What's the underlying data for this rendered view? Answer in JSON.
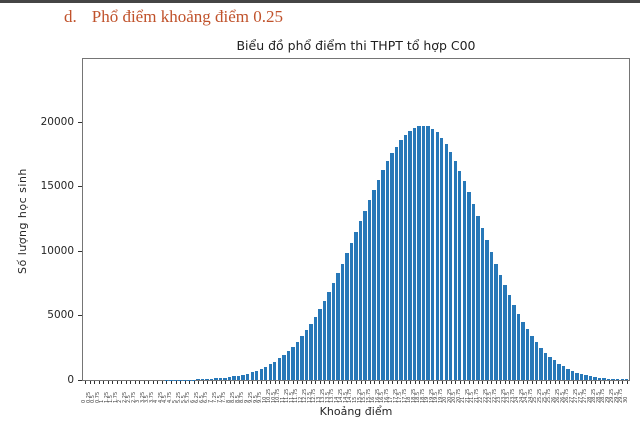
{
  "page": {
    "heading_marker": "d.",
    "heading_text": "Phổ điểm khoảng điểm 0.25",
    "heading_color": "#c0522b"
  },
  "chart_data": {
    "type": "bar",
    "title": "Biểu đồ phổ điểm thi THPT tổ hợp C00",
    "xlabel": "Khoảng điểm",
    "ylabel": "Số lượng học sinh",
    "bar_color": "#2878b8",
    "axis_color": "#757575",
    "grid": false,
    "legend": "none",
    "ylim": [
      0,
      24850
    ],
    "yticks": [
      0,
      5000,
      10000,
      15000,
      20000
    ],
    "x": [
      0,
      0.25,
      0.5,
      0.75,
      1,
      1.25,
      1.5,
      1.75,
      2,
      2.25,
      2.5,
      2.75,
      3,
      3.25,
      3.5,
      3.75,
      4,
      4.25,
      4.5,
      4.75,
      5,
      5.25,
      5.5,
      5.75,
      6,
      6.25,
      6.5,
      6.75,
      7,
      7.25,
      7.5,
      7.75,
      8,
      8.25,
      8.5,
      8.75,
      9,
      9.25,
      9.5,
      9.75,
      10,
      10.25,
      10.5,
      10.75,
      11,
      11.25,
      11.5,
      11.75,
      12,
      12.25,
      12.5,
      12.75,
      13,
      13.25,
      13.5,
      13.75,
      14,
      14.25,
      14.5,
      14.75,
      15,
      15.25,
      15.5,
      15.75,
      16,
      16.25,
      16.5,
      16.75,
      17,
      17.25,
      17.5,
      17.75,
      18,
      18.25,
      18.5,
      18.75,
      19,
      19.25,
      19.5,
      19.75,
      20,
      20.25,
      20.5,
      20.75,
      21,
      21.25,
      21.5,
      21.75,
      22,
      22.25,
      22.5,
      22.75,
      23,
      23.25,
      23.5,
      23.75,
      24,
      24.25,
      24.5,
      24.75,
      25,
      25.25,
      25.5,
      25.75,
      26,
      26.25,
      26.5,
      26.75,
      27,
      27.25,
      27.5,
      27.75,
      28,
      28.25,
      28.5,
      28.75,
      29,
      29.25,
      29.5,
      29.75,
      30
    ],
    "values": [
      0,
      0,
      0,
      0,
      0,
      0,
      0,
      0,
      0,
      1,
      1,
      1,
      1,
      2,
      2,
      3,
      4,
      6,
      8,
      10,
      13,
      17,
      22,
      29,
      37,
      47,
      60,
      76,
      95,
      119,
      148,
      184,
      227,
      280,
      342,
      415,
      503,
      606,
      726,
      865,
      1028,
      1213,
      1427,
      1668,
      1940,
      2247,
      2590,
      2973,
      3395,
      3861,
      4366,
      4915,
      5504,
      6136,
      6804,
      7511,
      8249,
      9017,
      9808,
      10620,
      11444,
      12275,
      13104,
      13925,
      14727,
      15500,
      16235,
      16920,
      17546,
      18061,
      18548,
      18954,
      19277,
      19511,
      19653,
      19700,
      19640,
      19461,
      19166,
      18761,
      18253,
      17650,
      16964,
      16205,
      15385,
      14519,
      13618,
      12695,
      11762,
      10832,
      9914,
      9019,
      8155,
      7329,
      6546,
      5812,
      5128,
      4497,
      3920,
      3396,
      2925,
      2504,
      2130,
      1801,
      1514,
      1264,
      1049,
      866,
      710,
      579,
      469,
      377,
      302,
      240,
      190,
      149,
      117,
      90,
      70,
      54,
      41
    ]
  }
}
